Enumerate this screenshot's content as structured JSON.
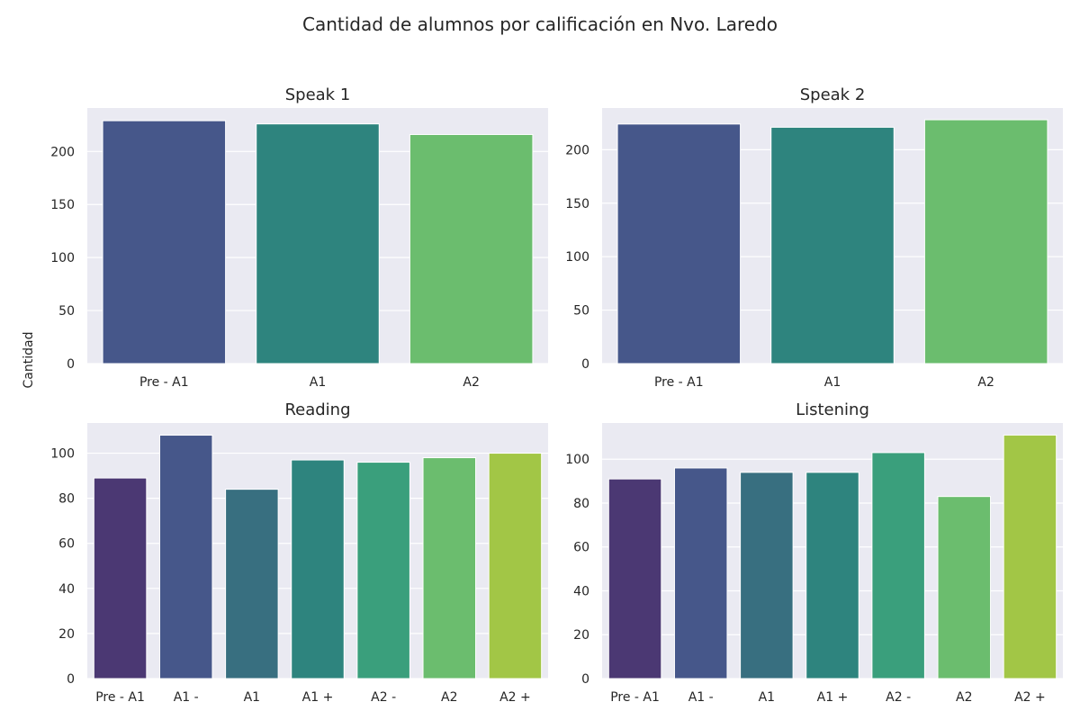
{
  "figure": {
    "suptitle": "Cantidad de alumnos por calificación en Nvo. Laredo",
    "ylabel": "Cantidad"
  },
  "chart_data": [
    {
      "type": "bar",
      "title": "Speak 1",
      "categories": [
        "Pre - A1",
        "A1",
        "A2"
      ],
      "values": [
        229,
        226,
        216
      ],
      "ylim": [
        0,
        241
      ],
      "yticks": [
        0,
        50,
        100,
        150,
        200
      ],
      "colors": [
        "#46578a",
        "#2e847e",
        "#6bbd6e"
      ],
      "grid": true
    },
    {
      "type": "bar",
      "title": "Speak 2",
      "categories": [
        "Pre - A1",
        "A1",
        "A2"
      ],
      "values": [
        224,
        221,
        228
      ],
      "ylim": [
        0,
        239
      ],
      "yticks": [
        0,
        50,
        100,
        150,
        200
      ],
      "colors": [
        "#46578a",
        "#2e847e",
        "#6bbd6e"
      ],
      "grid": true
    },
    {
      "type": "bar",
      "title": "Reading",
      "categories": [
        "Pre - A1",
        "A1 -",
        "A1",
        "A1 +",
        "A2 -",
        "A2",
        "A2 +"
      ],
      "values": [
        89,
        108,
        84,
        97,
        96,
        98,
        100
      ],
      "ylim": [
        0,
        113.4
      ],
      "yticks": [
        0,
        20,
        40,
        60,
        80,
        100
      ],
      "colors": [
        "#4b3873",
        "#46578a",
        "#386f80",
        "#2e847e",
        "#3a9f7c",
        "#6bbd6e",
        "#a2c646"
      ],
      "grid": true
    },
    {
      "type": "bar",
      "title": "Listening",
      "categories": [
        "Pre - A1",
        "A1 -",
        "A1",
        "A1 +",
        "A2 -",
        "A2",
        "A2 +"
      ],
      "values": [
        91,
        96,
        94,
        94,
        103,
        83,
        111
      ],
      "ylim": [
        0,
        116.5
      ],
      "yticks": [
        0,
        20,
        40,
        60,
        80,
        100
      ],
      "colors": [
        "#4b3873",
        "#46578a",
        "#386f80",
        "#2e847e",
        "#3a9f7c",
        "#6bbd6e",
        "#a2c646"
      ],
      "grid": true
    }
  ]
}
